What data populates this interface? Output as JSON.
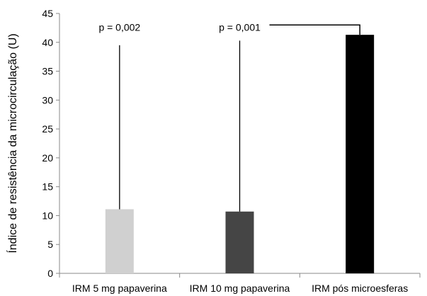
{
  "chart_data": {
    "type": "bar",
    "title": "",
    "xlabel": "",
    "ylabel": "Índice de resistência da microcirculação (U)",
    "categories": [
      "IRM 5 mg papaverina",
      "IRM 10 mg papaverina",
      "IRM pós microesferas"
    ],
    "values": [
      11.1,
      10.7,
      41.3
    ],
    "bar_colors": [
      "#d0d0d0",
      "#454545",
      "#000000"
    ],
    "error_bar_tops": [
      39.5,
      40.3,
      null
    ],
    "ylim": [
      0,
      45
    ],
    "yticks": [
      0,
      5,
      10,
      15,
      20,
      25,
      30,
      35,
      40,
      45
    ],
    "ytick_labels": [
      "0",
      "5",
      "10",
      "15",
      "20",
      "25",
      "30",
      "35",
      "40",
      "45"
    ],
    "grid": false,
    "legend": "none",
    "annotations": [
      {
        "text": "p = 0,002",
        "category_index": 0,
        "y": 42.0
      },
      {
        "text": "p = 0,001",
        "category_index": 1,
        "y": 42.0
      }
    ],
    "significance_bracket": {
      "from_category": 1,
      "to_category": 2,
      "y": 43.0
    }
  }
}
